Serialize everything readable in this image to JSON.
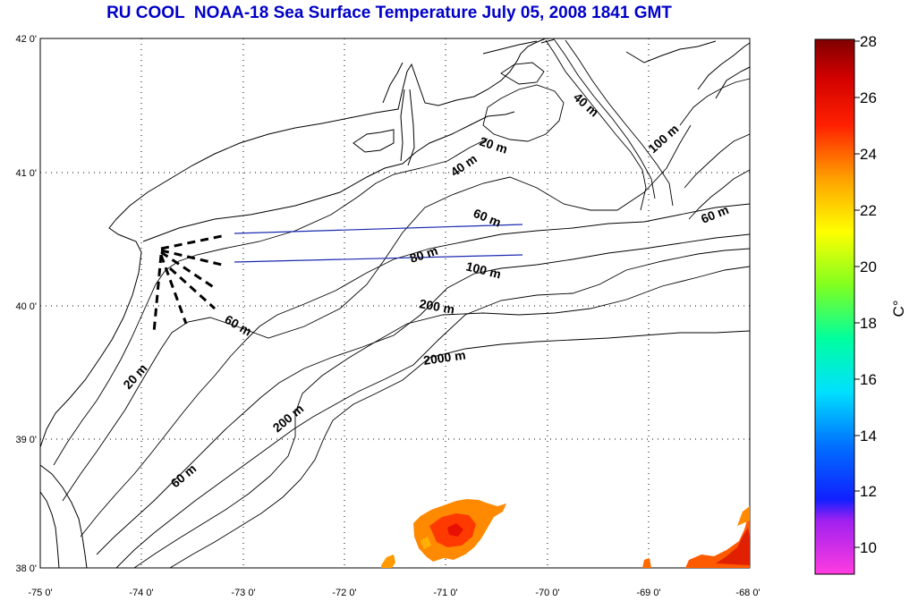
{
  "title": "RU COOL  NOAA-18 Sea Surface Temperature July 05, 2008 1841 GMT",
  "map": {
    "lon_ticks": [
      "-75 0'",
      "-74 0'",
      "-73 0'",
      "-72 0'",
      "-71 0'",
      "-70 0'",
      "-69 0'",
      "-68 0'"
    ],
    "lat_ticks": [
      "38 0'",
      "39 0'",
      "40 0'",
      "41 0'",
      "42 0'"
    ],
    "contour_labels": [
      {
        "text": "20 m"
      },
      {
        "text": "40 m"
      },
      {
        "text": "40 m"
      },
      {
        "text": "60 m"
      },
      {
        "text": "60 m"
      },
      {
        "text": "80 m"
      },
      {
        "text": "100 m"
      },
      {
        "text": "100 m"
      },
      {
        "text": "200 m"
      },
      {
        "text": "2000 m"
      },
      {
        "text": "60 m"
      },
      {
        "text": "20 m"
      },
      {
        "text": "200 m"
      },
      {
        "text": "60 m"
      }
    ]
  },
  "colorbar": {
    "unit": "C°",
    "ticks": [
      "10",
      "12",
      "14",
      "16",
      "18",
      "20",
      "22",
      "24",
      "26",
      "28"
    ]
  }
}
